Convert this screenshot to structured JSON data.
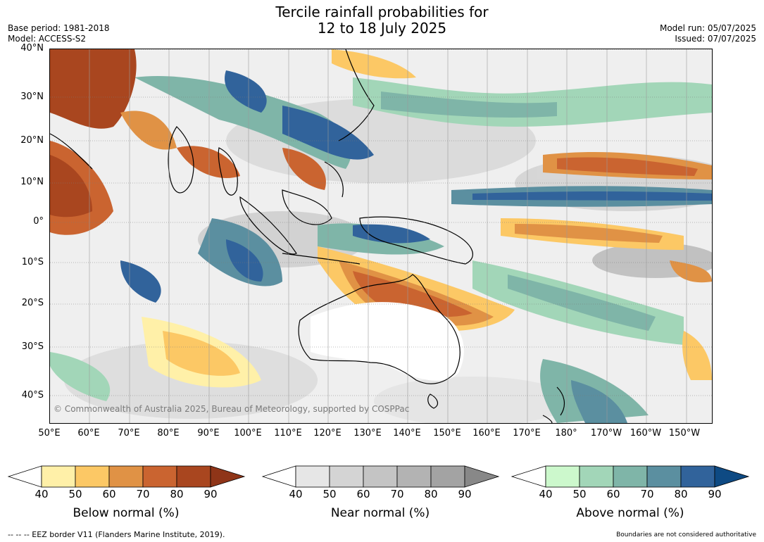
{
  "title_line1": "Tercile rainfall probabilities for",
  "title_line2": "12 to 18 July 2025",
  "base_period": "Base period: 1981-2018",
  "model": "Model: ACCESS-S2",
  "model_run": "Model run: 05/07/2025",
  "issued": "Issued: 07/07/2025",
  "lat_labels": [
    "40°N",
    "30°N",
    "20°N",
    "10°N",
    "0°",
    "10°S",
    "20°S",
    "30°S",
    "40°S"
  ],
  "lon_labels": [
    "50°E",
    "60°E",
    "70°E",
    "80°E",
    "90°E",
    "100°E",
    "110°E",
    "120°E",
    "130°E",
    "140°E",
    "150°E",
    "160°E",
    "170°E",
    "180°",
    "170°W",
    "160°W",
    "150°W"
  ],
  "copyright": "© Commonwealth of Australia 2025, Bureau of Meteorology, supported by COSPPac",
  "legends": [
    {
      "title": "Below normal (%)",
      "ticks": [
        "40",
        "50",
        "60",
        "70",
        "80",
        "90"
      ],
      "colors": [
        "#fff0a8",
        "#fcc865",
        "#e09245",
        "#ca6430",
        "#a9461f"
      ],
      "end_color": "#8f3518"
    },
    {
      "title": "Near normal (%)",
      "ticks": [
        "40",
        "50",
        "60",
        "70",
        "80",
        "90"
      ],
      "colors": [
        "#e6e6e6",
        "#d4d4d4",
        "#c4c4c4",
        "#b3b3b3",
        "#a3a3a3"
      ],
      "end_color": "#888888"
    },
    {
      "title": "Above normal (%)",
      "ticks": [
        "40",
        "50",
        "60",
        "70",
        "80",
        "90"
      ],
      "colors": [
        "#ccf8cc",
        "#a2d6b8",
        "#7fb5a8",
        "#5b8fa0",
        "#31639b"
      ],
      "end_color": "#0e4a83"
    }
  ],
  "footer_left": "--  --  -- EEZ border V11 (Flanders Marine Institute, 2019).",
  "footer_right": "Boundaries are not considered authoritative"
}
